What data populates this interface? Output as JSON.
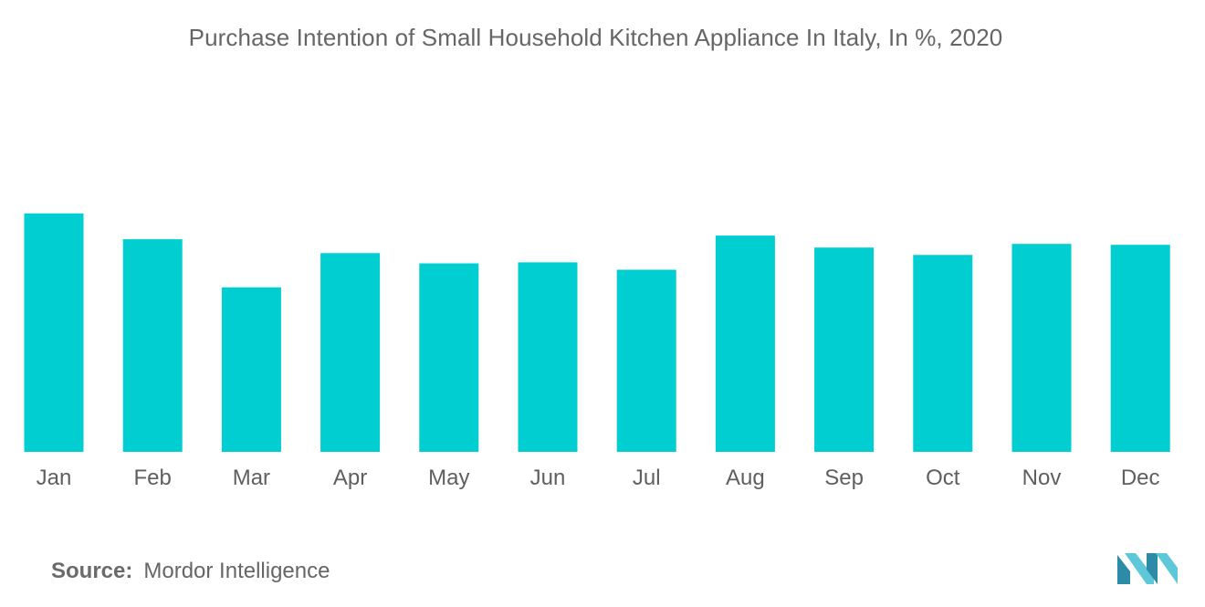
{
  "chart_data": {
    "type": "bar",
    "title": "Purchase Intention of Small Household Kitchen Appliance In Italy, In %, 2020",
    "xlabel": "",
    "ylabel": "",
    "categories": [
      "Jan",
      "Feb",
      "Mar",
      "Apr",
      "May",
      "Jun",
      "Jul",
      "Aug",
      "Sep",
      "Oct",
      "Nov",
      "Dec"
    ],
    "values": [
      25.8,
      23.0,
      17.8,
      21.5,
      20.4,
      20.5,
      19.7,
      23.4,
      22.1,
      21.3,
      22.5,
      22.4
    ],
    "ylim": [
      0,
      40
    ],
    "grid": false,
    "legend": "none",
    "colors": {
      "bar": "#00CED1",
      "text": "#5f5f5f"
    }
  },
  "source": {
    "label": "Source:",
    "value": "Mordor Intelligence"
  },
  "logo": {
    "icon": "mordor-intelligence-logo",
    "colors": [
      "#2e8ba8",
      "#5ec8d8"
    ]
  }
}
